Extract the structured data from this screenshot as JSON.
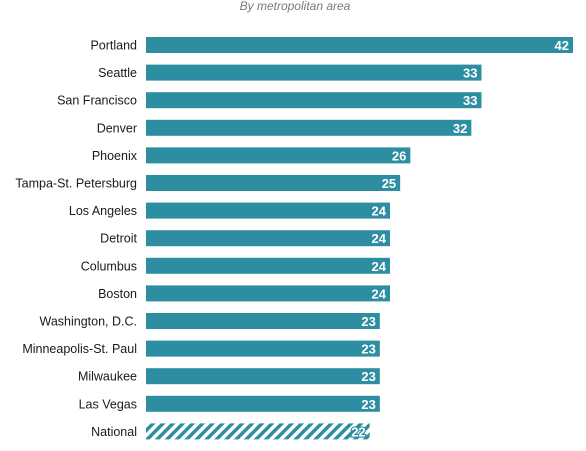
{
  "chart_data": {
    "type": "bar",
    "orientation": "horizontal",
    "subtitle": "By metropolitan area",
    "title": "",
    "xlabel": "",
    "ylabel": "",
    "categories": [
      "Portland",
      "Seattle",
      "San Francisco",
      "Denver",
      "Phoenix",
      "Tampa-St. Petersburg",
      "Los Angeles",
      "Detroit",
      "Columbus",
      "Boston",
      "Washington, D.C.",
      "Minneapolis-St. Paul",
      "Milwaukee",
      "Las Vegas",
      "National"
    ],
    "values": [
      42,
      33,
      33,
      32,
      26,
      25,
      24,
      24,
      24,
      24,
      23,
      23,
      23,
      23,
      22
    ],
    "xlim": [
      0,
      42
    ],
    "grid": false,
    "legend": "none",
    "data_labels": true,
    "bar_color": "#2e8ea1",
    "hatched_categories": [
      "National"
    ]
  }
}
